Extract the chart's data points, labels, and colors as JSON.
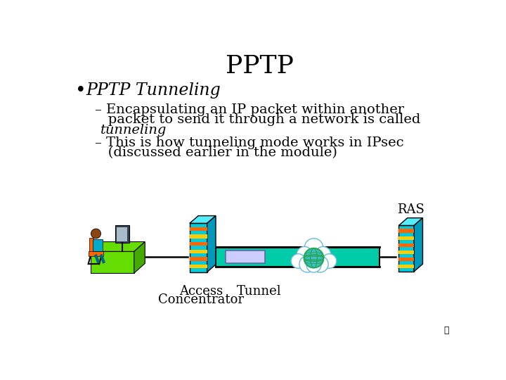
{
  "title": "PPTP",
  "bullet": "PPTP Tunneling",
  "sub1_line1": "– Encapsulating an IP packet within another",
  "sub1_line2": "   packet to send it through a network is called",
  "sub1_line3": "   tunneling",
  "sub2_line1": "– This is how tunneling mode works in IPsec",
  "sub2_line2": "   (discussed earlier in the module)",
  "label_ac": "Access\nConcentrator",
  "label_tunnel": "Tunnel",
  "label_ras": "RAS",
  "bg_color": "#ffffff",
  "text_color": "#000000",
  "title_fontsize": 26,
  "bullet_fontsize": 17,
  "sub_fontsize": 14,
  "label_fontsize": 13,
  "tunnel_color": "#00ccaa",
  "server_front": "#00ccdd",
  "server_top": "#55eeff",
  "server_side": "#0099bb",
  "server_orange": "#ff6600",
  "server_yellow": "#ffcc00",
  "packet_color": "#ccccff",
  "cloud_color": "#ffffff",
  "cloud_edge": "#66bbdd",
  "globe_blue": "#44bbcc",
  "globe_green": "#22aa55",
  "desk_green": "#66dd00",
  "desk_dark": "#44aa00",
  "line_color": "#000000"
}
